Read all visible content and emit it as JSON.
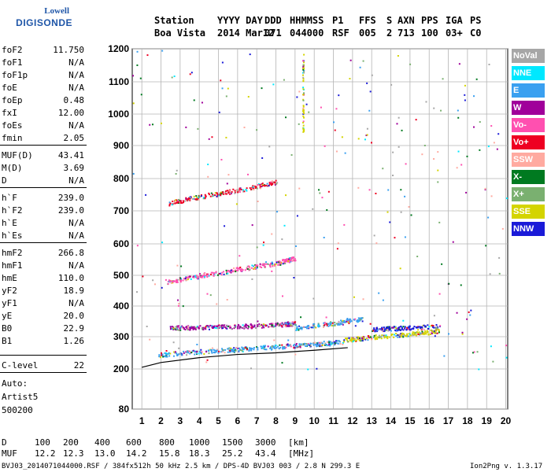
{
  "logo": {
    "line1": "Lowell",
    "line2": "DIGISONDE"
  },
  "header": {
    "row1": [
      "Station",
      "YYYY DAY",
      "DDD",
      "HHMMSS",
      "P1",
      "FFS",
      "S",
      "AXN",
      "PPS",
      "IGA",
      "PS"
    ],
    "row2": [
      "Boa Vista",
      "2014 Mar12",
      "071",
      "044000",
      "RSF",
      "005",
      "2",
      "713",
      "100",
      "03+",
      "C0"
    ]
  },
  "params": [
    {
      "k": "foF2",
      "v": "11.750"
    },
    {
      "k": "foF1",
      "v": "N/A"
    },
    {
      "k": "foF1p",
      "v": "N/A"
    },
    {
      "k": "foE",
      "v": "N/A"
    },
    {
      "k": "foEp",
      "v": "0.48"
    },
    {
      "k": "fxI",
      "v": "12.00"
    },
    {
      "k": "foEs",
      "v": "N/A"
    },
    {
      "k": "fmin",
      "v": "2.05"
    },
    {
      "k": "MUF(D)",
      "v": "43.41"
    },
    {
      "k": "M(D)",
      "v": "3.69"
    },
    {
      "k": "D",
      "v": "N/A"
    },
    {
      "k": "h`F",
      "v": "239.0"
    },
    {
      "k": "h`F2",
      "v": "239.0"
    },
    {
      "k": "h`E",
      "v": "N/A"
    },
    {
      "k": "h`Es",
      "v": "N/A"
    },
    {
      "k": "hmF2",
      "v": "266.8"
    },
    {
      "k": "hmF1",
      "v": "N/A"
    },
    {
      "k": "hmE",
      "v": "110.0"
    },
    {
      "k": "yF2",
      "v": "18.9"
    },
    {
      "k": "yF1",
      "v": "N/A"
    },
    {
      "k": "yE",
      "v": "20.0"
    },
    {
      "k": "B0",
      "v": "22.9"
    },
    {
      "k": "B1",
      "v": "1.26"
    },
    {
      "k": "C-level",
      "v": "22"
    }
  ],
  "auto": {
    "l1": "Auto:",
    "l2": "Artist5",
    "l3": "500200"
  },
  "legend": [
    {
      "label": "NoVal",
      "color": "#a6a6a6"
    },
    {
      "label": "NNE",
      "color": "#00e8ff"
    },
    {
      "label": "E",
      "color": "#3aa0f0"
    },
    {
      "label": "W",
      "color": "#a0009a"
    },
    {
      "label": "Vo-",
      "color": "#ff50b0"
    },
    {
      "label": "Vo+",
      "color": "#ee0022"
    },
    {
      "label": "SSW",
      "color": "#ffaaa0"
    },
    {
      "label": "X-",
      "color": "#007a20"
    },
    {
      "label": "X+",
      "color": "#7ab070"
    },
    {
      "label": "SSE",
      "color": "#d4d400"
    },
    {
      "label": "NNW",
      "color": "#1a1ad8"
    }
  ],
  "footer": {
    "d_label": "D",
    "d_values": [
      "100",
      "200",
      "400",
      "600",
      "800",
      "1000",
      "1500",
      "3000"
    ],
    "d_unit": "[km]",
    "muf_label": "MUF",
    "muf_values": [
      "12.2",
      "12.3",
      "13.0",
      "14.2",
      "15.8",
      "18.3",
      "25.2",
      "43.4"
    ],
    "muf_unit": "[MHz]",
    "file_info": "BVJ03_2014071044000.RSF / 384fx512h 50 kHz 2.5 km / DPS-4D BVJ03 003 / 2.8 N 299.3 E",
    "version": "Ion2Png v. 1.3.17"
  },
  "chart_data": {
    "type": "scatter",
    "x_ticks": [
      1,
      2,
      3,
      4,
      5,
      6,
      7,
      8,
      9,
      10,
      11,
      12,
      13,
      14,
      15,
      16,
      17,
      18,
      19,
      20
    ],
    "y_ticks": [
      80,
      200,
      300,
      400,
      500,
      600,
      700,
      800,
      900,
      1000,
      1100,
      1200
    ],
    "xlim": [
      0.5,
      20.1
    ],
    "ylim": [
      80,
      1200
    ],
    "y_scale": "quasi-log",
    "grid": true,
    "legend_placement": "right",
    "traces": [
      {
        "name": "F-layer trace",
        "color": "#3aa0f0",
        "x": [
          1.9,
          4,
          6,
          8,
          10,
          11.5
        ],
        "y": [
          245,
          255,
          262,
          270,
          278,
          285
        ]
      },
      {
        "name": "F-layer second hop",
        "color": "#ff50b0",
        "x": [
          2.3,
          4,
          6,
          8,
          9
        ],
        "y": [
          480,
          500,
          520,
          540,
          555
        ]
      },
      {
        "name": "F-layer third hop",
        "color": "#ee0022",
        "x": [
          2.4,
          4,
          6,
          8
        ],
        "y": [
          725,
          745,
          765,
          790
        ]
      },
      {
        "name": "upper F trace",
        "color": "#3aa0f0",
        "x": [
          9,
          11,
          12.5
        ],
        "y": [
          330,
          345,
          360
        ]
      },
      {
        "name": "extraordinary branch",
        "color": "#d4d400",
        "x": [
          11.5,
          13,
          15,
          16.5
        ],
        "y": [
          290,
          300,
          310,
          320
        ]
      },
      {
        "name": "W branch",
        "color": "#a0009a",
        "x": [
          2.5,
          4,
          6,
          8,
          9
        ],
        "y": [
          330,
          332,
          335,
          340,
          345
        ]
      },
      {
        "name": "NNW branch",
        "color": "#1a1ad8",
        "x": [
          13,
          14.5,
          16.5
        ],
        "y": [
          325,
          330,
          335
        ]
      },
      {
        "name": "vertical band",
        "color": "#d4d400",
        "x": [
          9.4,
          9.4
        ],
        "y": [
          940,
          1200
        ]
      }
    ],
    "fitted_profile": {
      "color": "#000000",
      "x": [
        1,
        2,
        4,
        6,
        8,
        10,
        11.75
      ],
      "y": [
        205,
        220,
        235,
        245,
        250,
        258,
        266
      ]
    }
  }
}
